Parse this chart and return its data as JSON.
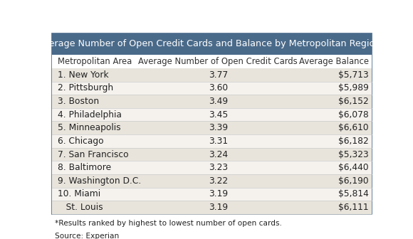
{
  "title": "Average Number of Open Credit Cards and Balance by Metropolitan Region*",
  "col_headers": [
    "Metropolitan Area",
    "Average Number of Open Credit Cards",
    "Average Balance"
  ],
  "rows": [
    [
      "1. New York",
      "3.77",
      "$5,713"
    ],
    [
      "2. Pittsburgh",
      "3.60",
      "$5,989"
    ],
    [
      "3. Boston",
      "3.49",
      "$6,152"
    ],
    [
      "4. Philadelphia",
      "3.45",
      "$6,078"
    ],
    [
      "5. Minneapolis",
      "3.39",
      "$6,610"
    ],
    [
      "6. Chicago",
      "3.31",
      "$6,182"
    ],
    [
      "7. San Francisco",
      "3.24",
      "$5,323"
    ],
    [
      "8. Baltimore",
      "3.23",
      "$6,440"
    ],
    [
      "9. Washington D.C.",
      "3.22",
      "$6,190"
    ],
    [
      "10. Miami",
      "3.19",
      "$5,814"
    ],
    [
      "   St. Louis",
      "3.19",
      "$6,111"
    ]
  ],
  "footnote1": "*Results ranked by highest to lowest number of open cards.",
  "footnote2": "Source: Experian",
  "header_bg": "#4a6a8a",
  "header_text_color": "#ffffff",
  "col_header_bg": "#ffffff",
  "col_header_text_color": "#333333",
  "row_odd_bg": "#e8e4dc",
  "row_even_bg": "#f5f2ee",
  "row_text_color": "#222222",
  "outer_border_color": "#4a6a8a",
  "fig_bg": "#ffffff",
  "title_fontsize": 9.2,
  "col_header_fontsize": 8.4,
  "row_fontsize": 8.8,
  "footnote_fontsize": 7.6,
  "separator_color": "#cccccc"
}
